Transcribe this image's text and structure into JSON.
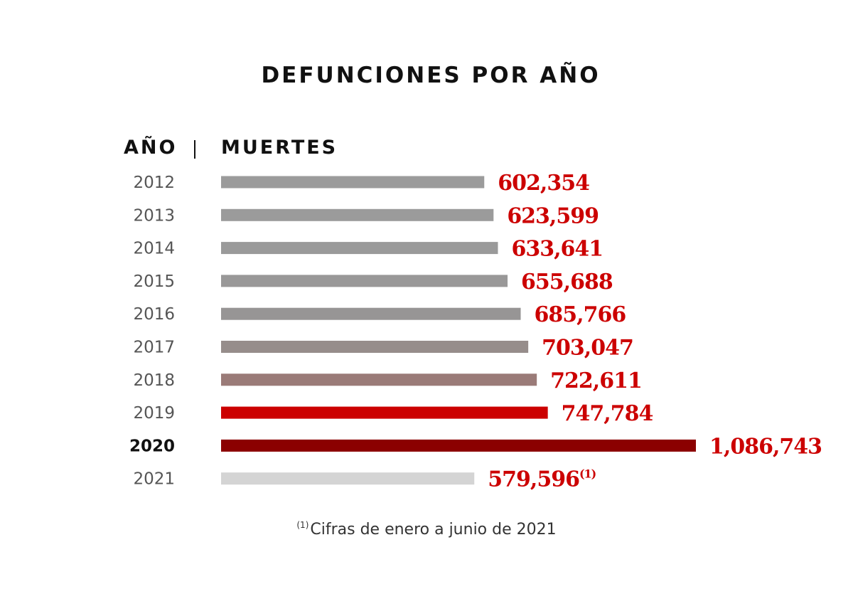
{
  "title": "DEFUNCIONES POR AÑO",
  "headers": {
    "year": "AÑO",
    "deaths": "MUERTES"
  },
  "footnote": {
    "marker": "(1)",
    "text": "Cifras de enero a junio de 2021"
  },
  "chart_data": {
    "type": "bar",
    "orientation": "horizontal",
    "title": "DEFUNCIONES POR AÑO",
    "categories": [
      "2012",
      "2013",
      "2014",
      "2015",
      "2016",
      "2017",
      "2018",
      "2019",
      "2020",
      "2021"
    ],
    "values": [
      602354,
      623599,
      633641,
      655688,
      685766,
      703047,
      722611,
      747784,
      1086743,
      579596
    ],
    "value_labels": [
      "602,354",
      "623,599",
      "633,641",
      "655,688",
      "685,766",
      "703,047",
      "722,611",
      "747,784",
      "1,086,743",
      "579,596"
    ],
    "value_label_suffixes": [
      "",
      "",
      "",
      "",
      "",
      "",
      "",
      "",
      "",
      "(1)"
    ],
    "colors": [
      "#9b9b9b",
      "#9b9b9b",
      "#9a9a9a",
      "#999898",
      "#979595",
      "#968d8b",
      "#9a7b78",
      "#cc0000",
      "#8b0000",
      "#d4d4d4"
    ],
    "highlight_category": "2020",
    "value_label_color": "#cc0000",
    "grid": false,
    "legend": "none"
  }
}
